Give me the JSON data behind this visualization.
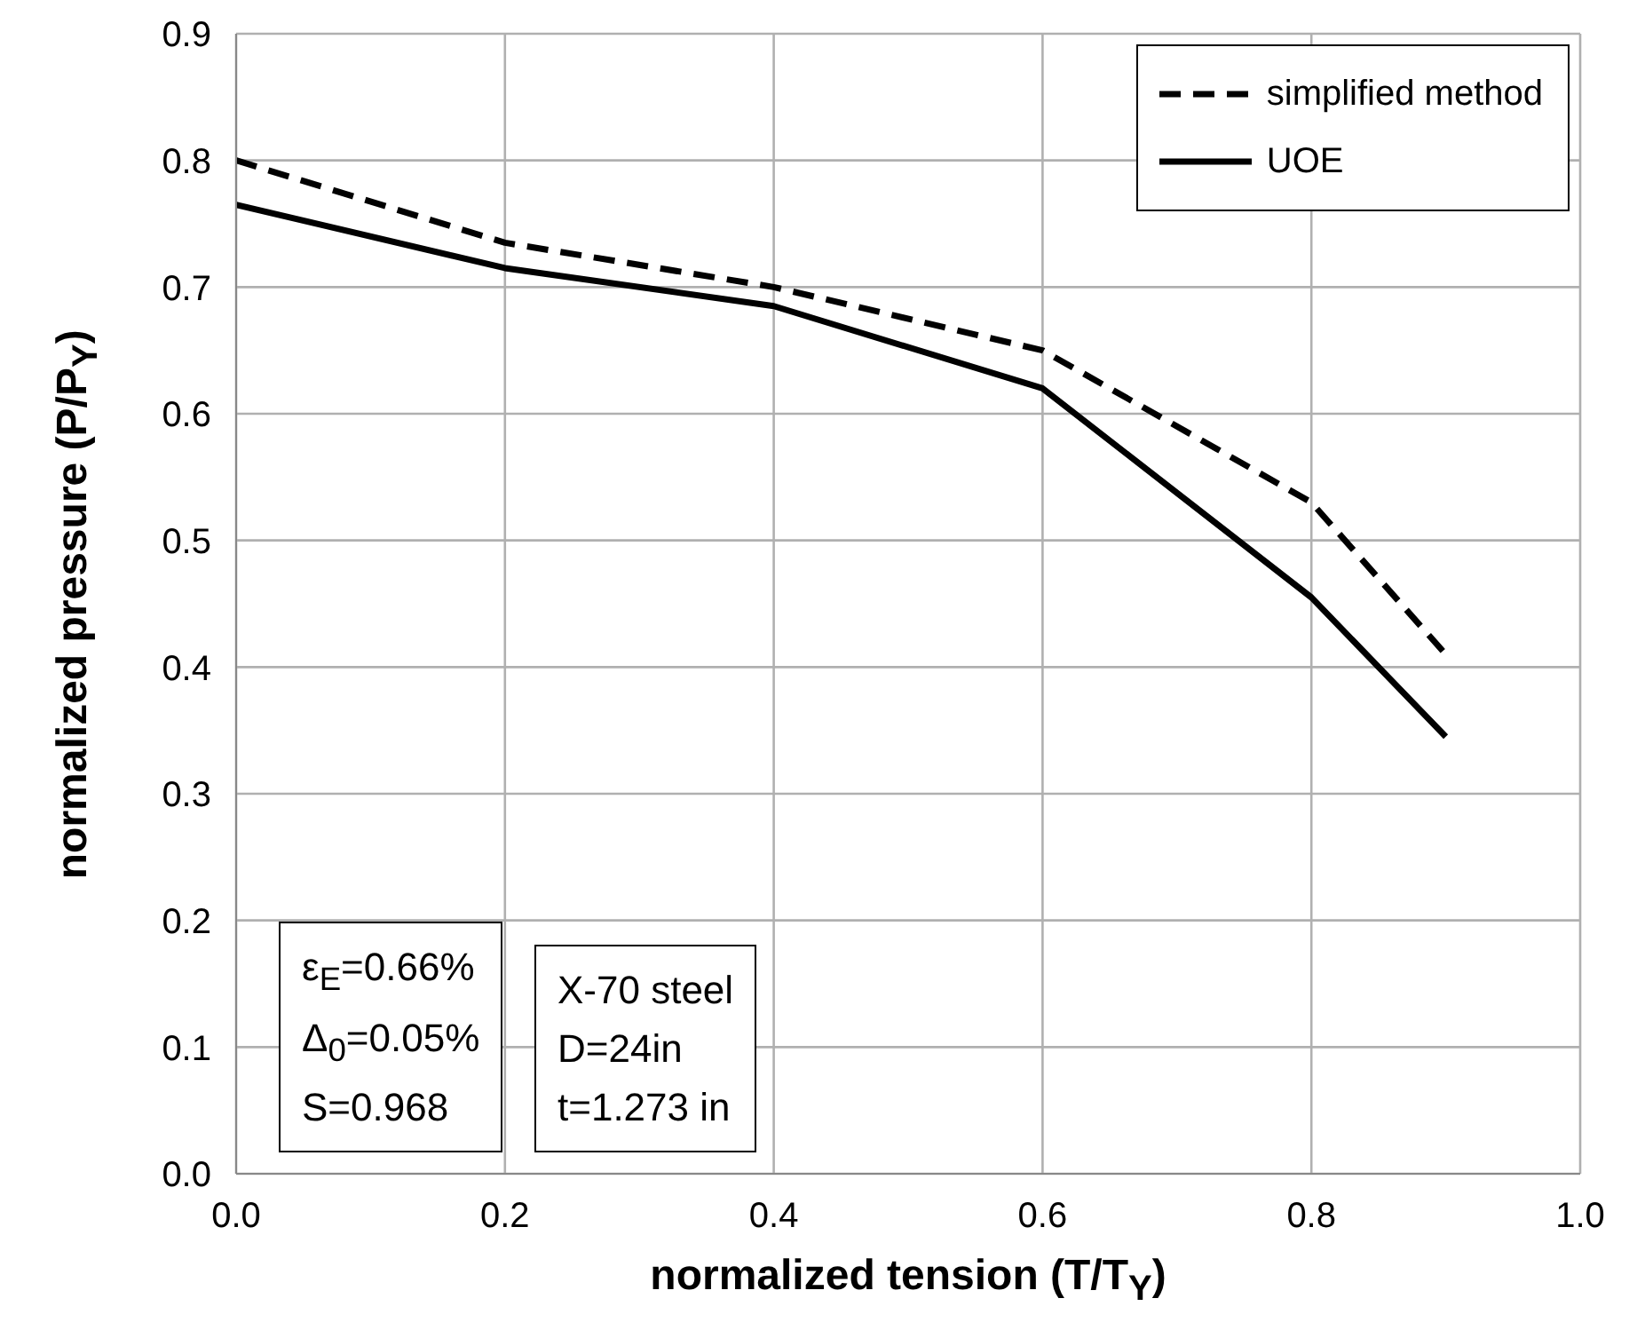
{
  "chart_data": {
    "type": "line",
    "xlabel": "normalized tension (T/T$_{Y}$)",
    "ylabel": "normalized pressure (P/P$_{Y}$)",
    "x": [
      0,
      0.2,
      0.4,
      0.6,
      0.8,
      0.9
    ],
    "series": [
      {
        "name": "simplified method",
        "color": "#000000",
        "line_style": "dashed",
        "values": [
          0.8,
          0.735,
          0.7,
          0.65,
          0.53,
          0.41
        ]
      },
      {
        "name": "UOE",
        "color": "#000000",
        "line_style": "solid",
        "values": [
          0.765,
          0.715,
          0.685,
          0.62,
          0.455,
          0.345
        ]
      }
    ],
    "xlim": [
      0,
      1
    ],
    "xticks": [
      {
        "value": 0,
        "label": "0.0"
      },
      {
        "value": 0.2,
        "label": "0.2"
      },
      {
        "value": 0.4,
        "label": "0.4"
      },
      {
        "value": 0.6,
        "label": "0.6"
      },
      {
        "value": 0.8,
        "label": "0.8"
      },
      {
        "value": 1,
        "label": "1.0"
      }
    ],
    "ylim": [
      0,
      0.9
    ],
    "yticks": [
      {
        "value": 0,
        "label": "0.0"
      },
      {
        "value": 0.1,
        "label": "0.1"
      },
      {
        "value": 0.2,
        "label": "0.2"
      },
      {
        "value": 0.3,
        "label": "0.3"
      },
      {
        "value": 0.4,
        "label": "0.4"
      },
      {
        "value": 0.5,
        "label": "0.5"
      },
      {
        "value": 0.6,
        "label": "0.6"
      },
      {
        "value": 0.7,
        "label": "0.7"
      },
      {
        "value": 0.8,
        "label": "0.8"
      },
      {
        "value": 0.9,
        "label": "0.9"
      }
    ],
    "grid": true,
    "legend": "top right",
    "marker": "none",
    "annotations": [
      "ε$_{E}$=0.66%\nΔ$_{0}$=0.05%\nS=0.968",
      "X-70 steel\nD=24in\nt=1.273 in"
    ]
  }
}
